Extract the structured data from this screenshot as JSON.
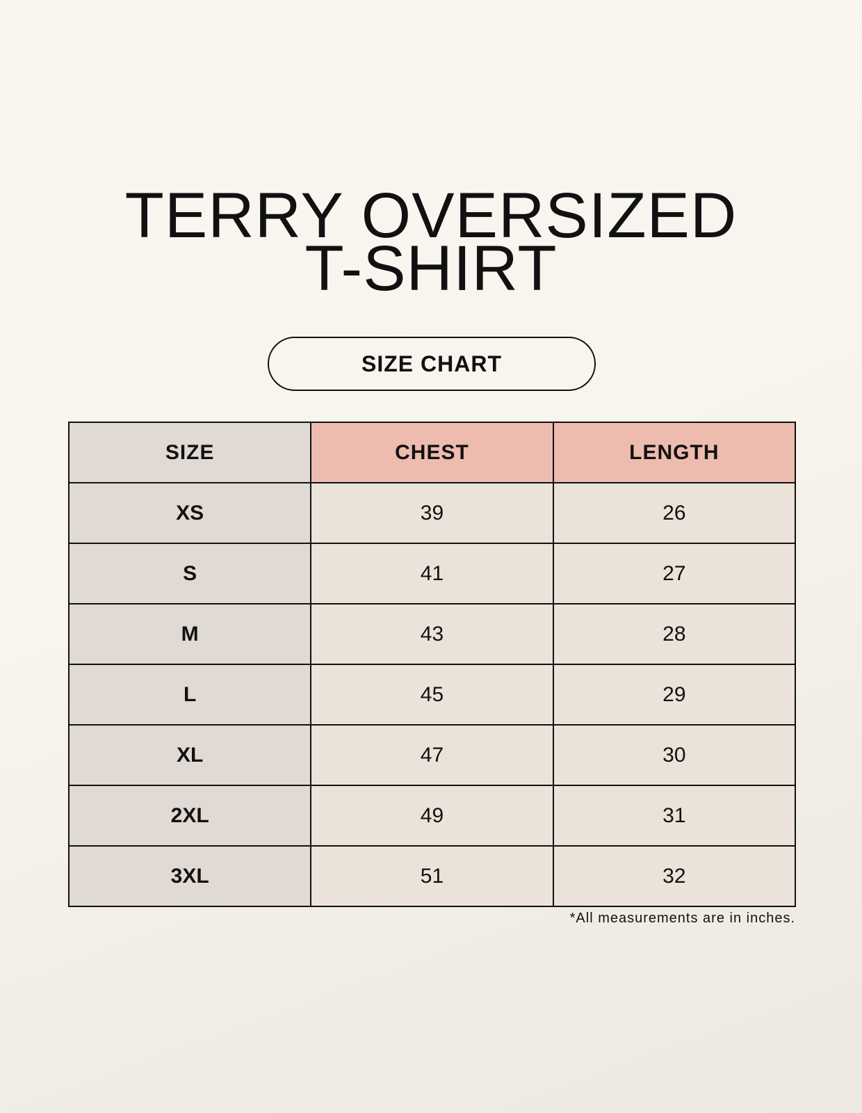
{
  "title_line1": "TERRY OVERSIZED",
  "title_line2": "T-SHIRT",
  "badge": "SIZE CHART",
  "table": {
    "headers": [
      "SIZE",
      "CHEST",
      "LENGTH"
    ],
    "rows": [
      [
        "XS",
        "39",
        "26"
      ],
      [
        "S",
        "41",
        "27"
      ],
      [
        "M",
        "43",
        "28"
      ],
      [
        "L",
        "45",
        "29"
      ],
      [
        "XL",
        "47",
        "30"
      ],
      [
        "2XL",
        "49",
        "31"
      ],
      [
        "3XL",
        "51",
        "32"
      ]
    ]
  },
  "footnote": "*All measurements are in inches.",
  "colors": {
    "size_column": "#e1d9d4",
    "header_accent": "#edbcaf",
    "cell": "#ebe3d9"
  }
}
